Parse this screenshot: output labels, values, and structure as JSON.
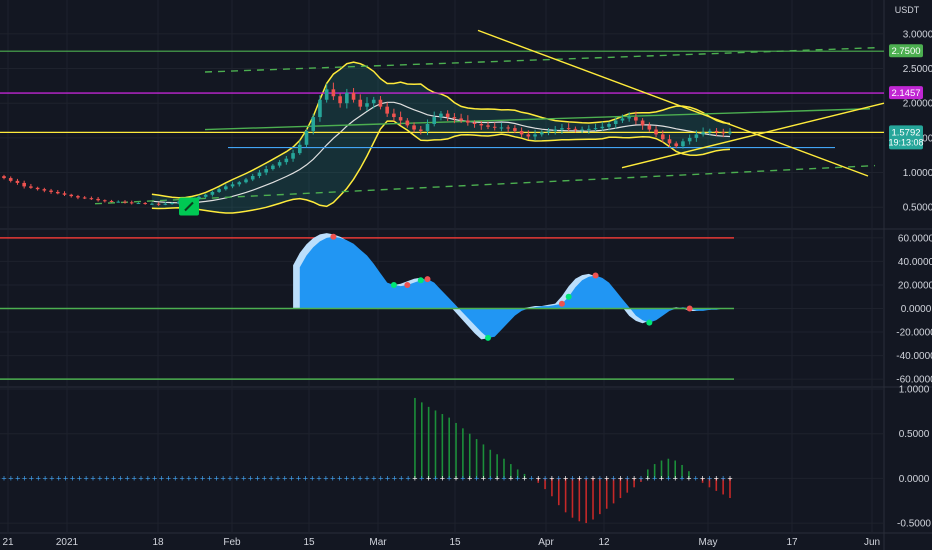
{
  "currency_label": "USDT",
  "colors": {
    "background": "#131722",
    "grid": "#1e222d",
    "bull": "#26a69a",
    "bear": "#ef5350",
    "bb_band": "#ffeb3b",
    "bb_basis": "#e0e0e0",
    "bb_fill": "#26a69a",
    "price_line": "#ffeb3b",
    "purple_line": "#c026d3",
    "green_line": "#4caf50",
    "blue_line": "#42a5f5",
    "osc_fill": "#2196f3",
    "osc_fill_light": "#bbdefb",
    "hist_up": "#1b8f3a",
    "hist_down": "#c62828"
  },
  "price_labels": [
    {
      "value": 2.75,
      "text": "2.7500",
      "bg": "#4caf50"
    },
    {
      "value": 2.1457,
      "text": "2.1457",
      "bg": "#c026d3"
    },
    {
      "value": 1.5792,
      "text": "1.5792",
      "bg": "#26a69a",
      "sub": "19:13:08"
    }
  ],
  "x_axis_ticks": [
    "21",
    "2021",
    "18",
    "Feb",
    "15",
    "Mar",
    "15",
    "Apr",
    "12",
    "May",
    "17",
    "Jun"
  ],
  "chart_data": [
    {
      "type": "candlestick",
      "title": "",
      "y_unit": "USDT",
      "y_ticks": [
        "3.0000",
        "2.5000",
        "2.0000",
        "1.5000",
        "1.0000",
        "0.5000"
      ],
      "ylim": [
        0.2,
        3.2
      ],
      "x_range_days": [
        "2020-12-21",
        "2021-06-01"
      ],
      "close_series": [
        0.92,
        0.88,
        0.85,
        0.8,
        0.78,
        0.76,
        0.74,
        0.72,
        0.7,
        0.68,
        0.66,
        0.64,
        0.63,
        0.62,
        0.6,
        0.59,
        0.58,
        0.58,
        0.57,
        0.56,
        0.56,
        0.55,
        0.55,
        0.54,
        0.55,
        0.56,
        0.58,
        0.6,
        0.62,
        0.65,
        0.68,
        0.72,
        0.76,
        0.8,
        0.83,
        0.86,
        0.9,
        0.95,
        1.0,
        1.05,
        1.1,
        1.15,
        1.2,
        1.28,
        1.4,
        1.6,
        1.8,
        2.05,
        2.2,
        2.1,
        2.0,
        2.15,
        2.05,
        1.95,
        2.0,
        2.05,
        1.95,
        1.85,
        1.8,
        1.75,
        1.68,
        1.62,
        1.6,
        1.7,
        1.8,
        1.85,
        1.8,
        1.78,
        1.75,
        1.72,
        1.7,
        1.68,
        1.66,
        1.65,
        1.65,
        1.64,
        1.6,
        1.55,
        1.52,
        1.55,
        1.58,
        1.6,
        1.62,
        1.64,
        1.63,
        1.62,
        1.62,
        1.63,
        1.64,
        1.66,
        1.7,
        1.75,
        1.78,
        1.8,
        1.75,
        1.68,
        1.62,
        1.55,
        1.48,
        1.42,
        1.38,
        1.45,
        1.5,
        1.55,
        1.58,
        1.6,
        1.58,
        1.57,
        1.58
      ],
      "levels": [
        {
          "name": "",
          "value": 2.75
        },
        {
          "name": "",
          "value": 2.1457
        },
        {
          "name": "",
          "value": 1.5792
        }
      ]
    },
    {
      "type": "area",
      "title": "",
      "y_ticks": [
        "60.0000",
        "40.0000",
        "20.0000",
        "0.0000",
        "-20.0000",
        "-40.0000",
        "-60.0000"
      ],
      "ylim": [
        -65,
        65
      ],
      "levels": [
        60,
        0,
        -60
      ],
      "values": [
        0,
        0,
        0,
        0,
        0,
        0,
        0,
        0,
        0,
        0,
        0,
        0,
        0,
        0,
        0,
        0,
        0,
        0,
        0,
        0,
        0,
        0,
        0,
        0,
        0,
        0,
        0,
        0,
        0,
        0,
        0,
        0,
        0,
        0,
        0,
        0,
        0,
        0,
        0,
        0,
        0,
        0,
        0,
        0,
        35,
        45,
        52,
        57,
        60,
        61,
        60,
        58,
        55,
        50,
        45,
        38,
        30,
        22,
        20,
        19,
        20,
        22,
        24,
        25,
        22,
        16,
        10,
        4,
        -2,
        -8,
        -14,
        -20,
        -25,
        -24,
        -18,
        -12,
        -6,
        -2,
        0,
        1,
        2,
        2,
        3,
        4,
        10,
        18,
        24,
        27,
        28,
        26,
        22,
        15,
        8,
        1,
        -6,
        -10,
        -12,
        -10,
        -6,
        -2,
        0,
        1,
        0,
        -2,
        -2,
        -1,
        -1,
        0,
        0
      ]
    },
    {
      "type": "bar",
      "title": "",
      "y_ticks": [
        "1.0000",
        "0.5000",
        "0.0000",
        "-0.5000"
      ],
      "ylim": [
        -0.6,
        1.0
      ],
      "values": [
        0,
        0,
        0,
        0,
        0,
        0,
        0,
        0,
        0,
        0,
        0,
        0,
        0,
        0,
        0,
        0,
        0,
        0,
        0,
        0,
        0,
        0,
        0,
        0,
        0,
        0,
        0,
        0,
        0,
        0,
        0,
        0,
        0,
        0,
        0,
        0,
        0,
        0,
        0,
        0,
        0,
        0,
        0,
        0,
        0,
        0,
        0,
        0,
        0,
        0,
        0,
        0,
        0,
        0,
        0,
        0,
        0,
        0,
        0,
        0,
        0.9,
        0.85,
        0.8,
        0.76,
        0.72,
        0.68,
        0.62,
        0.56,
        0.5,
        0.44,
        0.38,
        0.32,
        0.27,
        0.22,
        0.16,
        0.1,
        0.05,
        0,
        -0.05,
        -0.12,
        -0.2,
        -0.3,
        -0.38,
        -0.44,
        -0.48,
        -0.5,
        -0.46,
        -0.4,
        -0.34,
        -0.28,
        -0.22,
        -0.16,
        -0.1,
        -0.04,
        0.1,
        0.16,
        0.2,
        0.22,
        0.2,
        0.15,
        0.08,
        0,
        -0.05,
        -0.1,
        -0.14,
        -0.18,
        -0.22
      ]
    }
  ]
}
